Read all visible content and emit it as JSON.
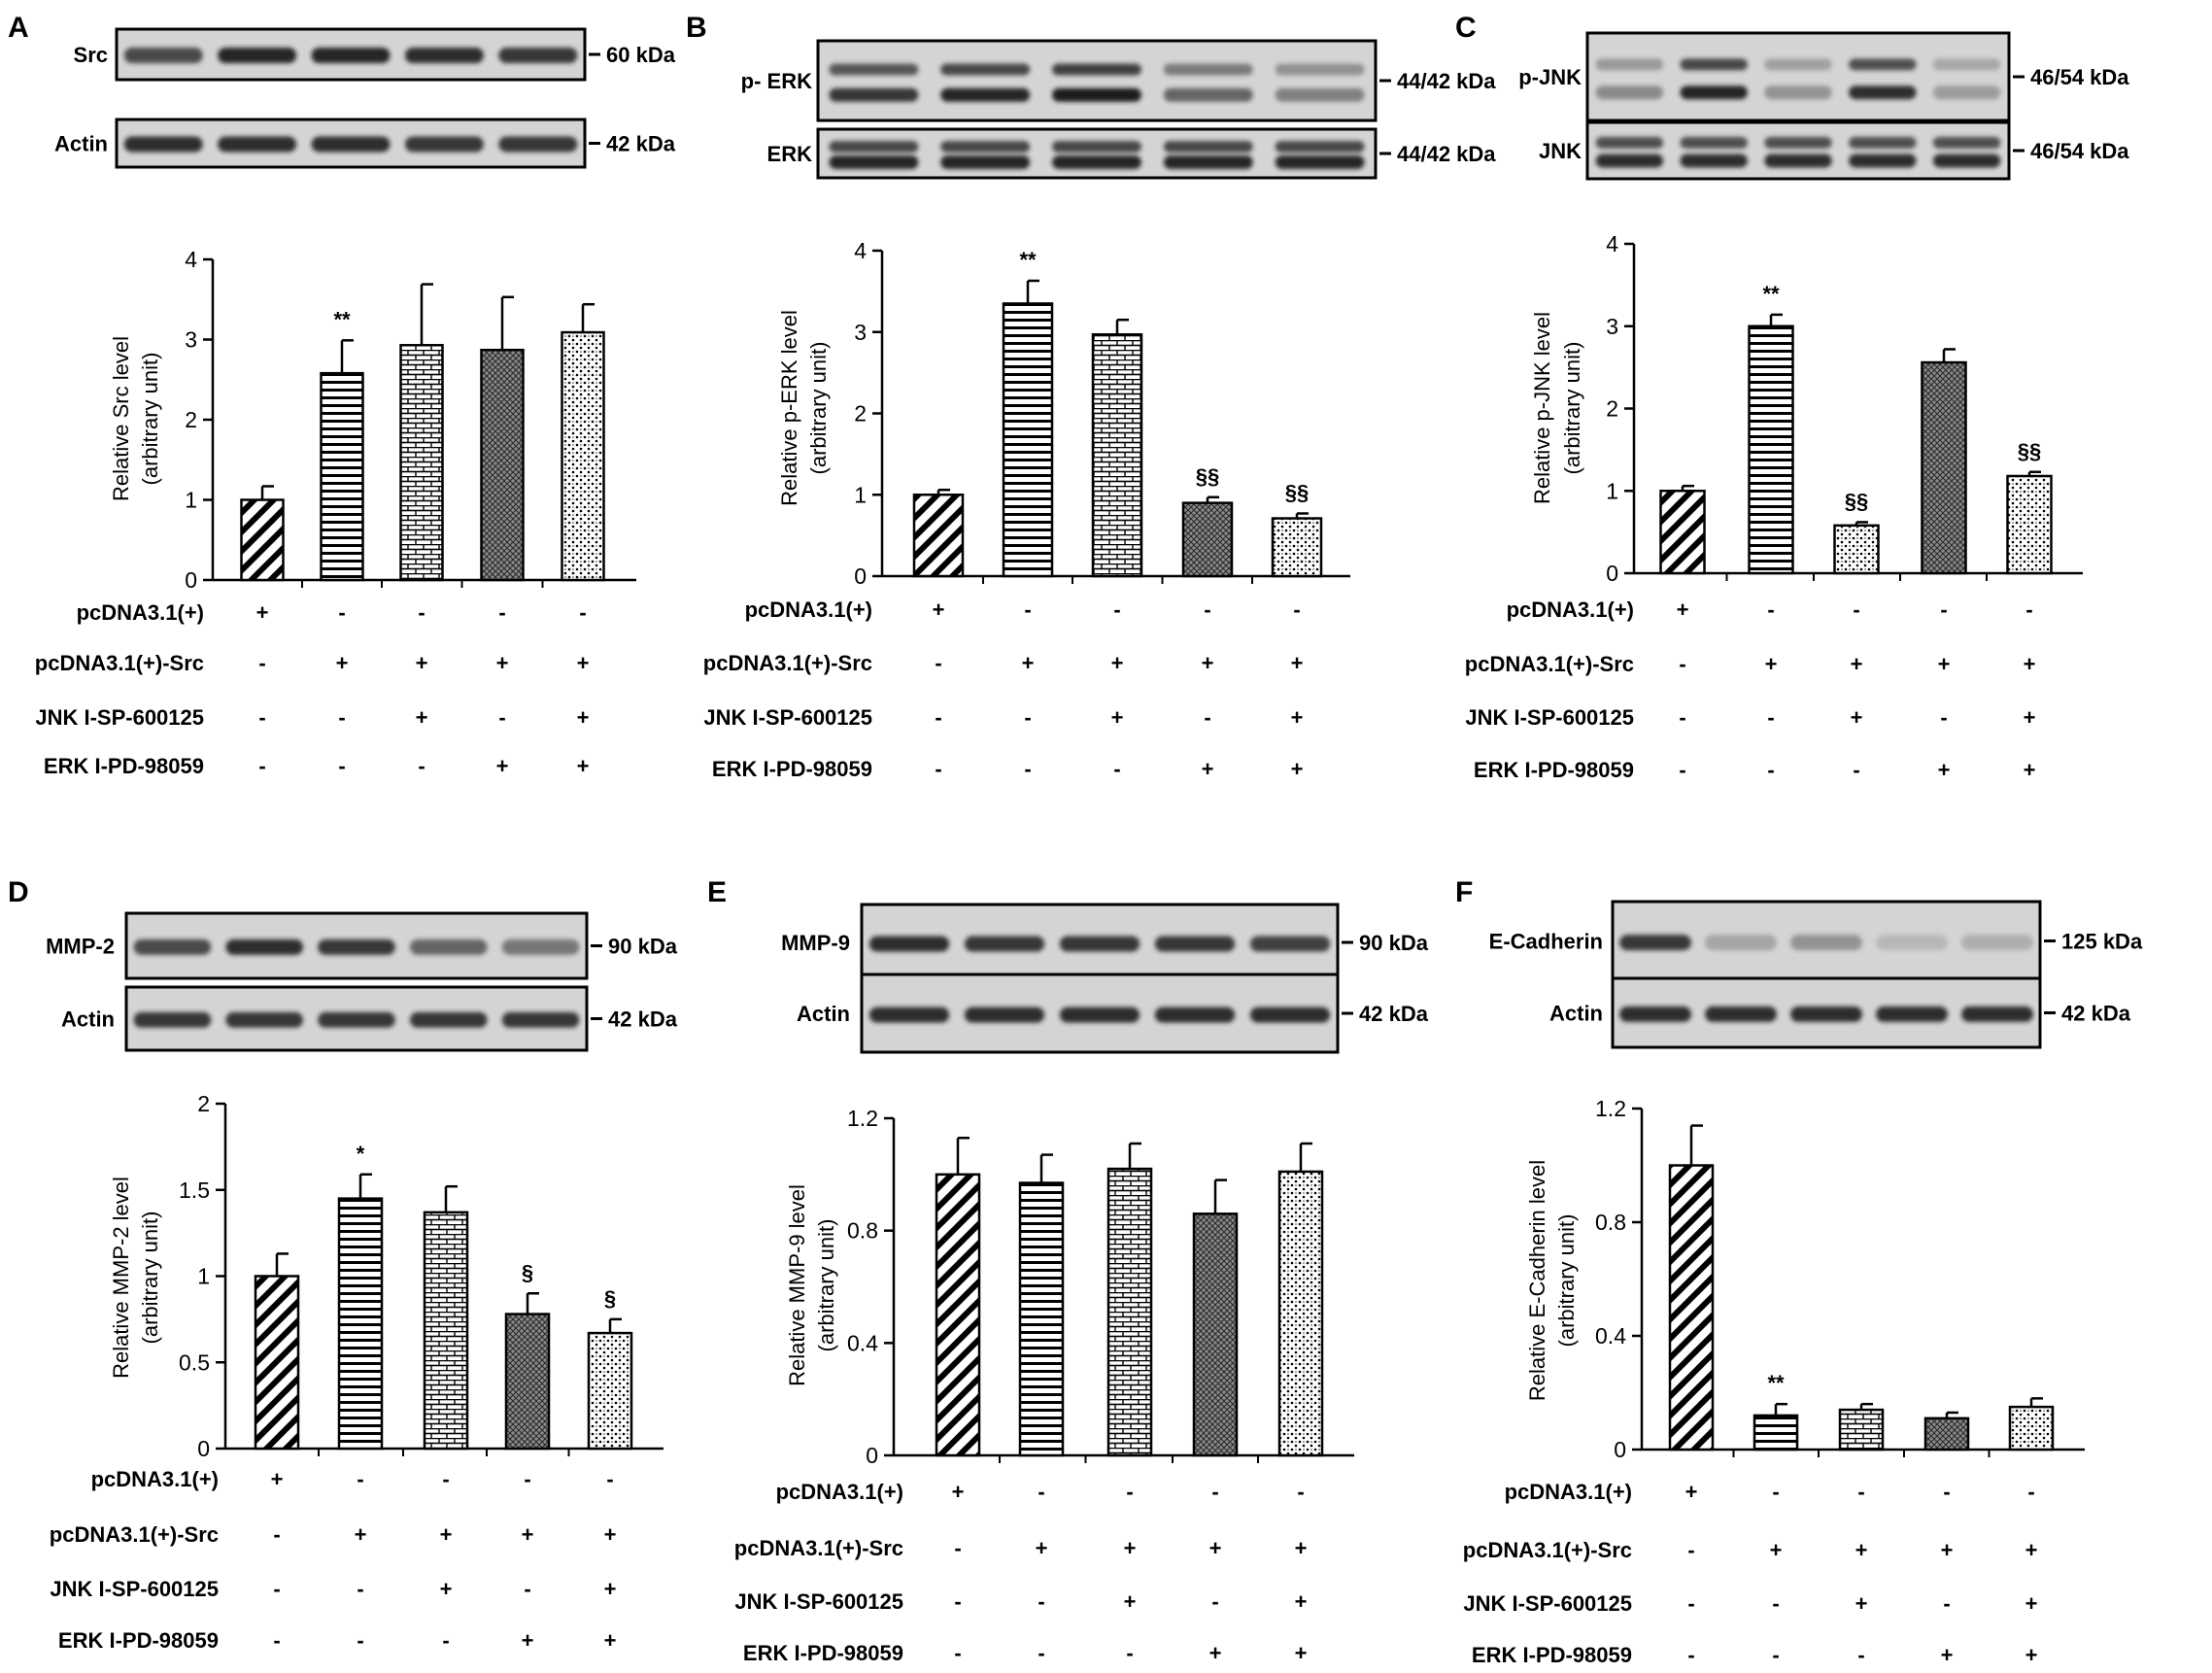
{
  "row_labels": [
    "pcDNA3.1(+)",
    "pcDNA3.1(+)-Src",
    "JNK I-SP-600125",
    "ERK I-PD-98059"
  ],
  "colors": {
    "band": "#1e1e1e",
    "blot_bg": "#d4d4d4",
    "axis": "#000000"
  },
  "panels": [
    {
      "letter": "A",
      "blots": [
        {
          "label": "Src",
          "marker": "60 kDa"
        },
        {
          "label": "Actin",
          "marker": "42 kDa"
        }
      ],
      "chart_data": {
        "type": "bar",
        "ylabel": "Relative Src level",
        "ylabel2": "(arbitrary unit)",
        "ylim": [
          0,
          4
        ],
        "yticks": [
          "0",
          "1",
          "2",
          "3",
          "4"
        ],
        "values": [
          1.0,
          2.58,
          2.93,
          2.87,
          3.09
        ],
        "errors": [
          0.17,
          0.41,
          0.76,
          0.66,
          0.35
        ],
        "annotations": [
          "",
          "**",
          "",
          "",
          ""
        ],
        "patterns": [
          "diag",
          "horiz",
          "brick",
          "cross",
          "dots"
        ],
        "signs": [
          [
            "+",
            "-",
            "-",
            "-",
            "-"
          ],
          [
            "-",
            "+",
            "+",
            "+",
            "+"
          ],
          [
            "-",
            "-",
            "+",
            "-",
            "+"
          ],
          [
            "-",
            "-",
            "-",
            "+",
            "+"
          ]
        ]
      }
    },
    {
      "letter": "B",
      "blots": [
        {
          "label": "p- ERK",
          "marker": "44/42 kDa"
        },
        {
          "label": "ERK",
          "marker": "44/42 kDa"
        }
      ],
      "chart_data": {
        "type": "bar",
        "ylabel": "Relative p-ERK level",
        "ylabel2": "(arbitrary unit)",
        "ylim": [
          0,
          4
        ],
        "yticks": [
          "0",
          "1",
          "2",
          "3",
          "4"
        ],
        "values": [
          1.0,
          3.35,
          2.97,
          0.9,
          0.71
        ],
        "errors": [
          0.06,
          0.28,
          0.18,
          0.07,
          0.06
        ],
        "annotations": [
          "",
          "**",
          "",
          "§§",
          "§§"
        ],
        "patterns": [
          "diag",
          "horiz",
          "brick",
          "cross",
          "dots"
        ],
        "signs": [
          [
            "+",
            "-",
            "-",
            "-",
            "-"
          ],
          [
            "-",
            "+",
            "+",
            "+",
            "+"
          ],
          [
            "-",
            "-",
            "+",
            "-",
            "+"
          ],
          [
            "-",
            "-",
            "-",
            "+",
            "+"
          ]
        ]
      }
    },
    {
      "letter": "C",
      "blots": [
        {
          "label": "p-JNK",
          "marker": "46/54 kDa"
        },
        {
          "label": "JNK",
          "marker": "46/54 kDa"
        }
      ],
      "chart_data": {
        "type": "bar",
        "ylabel": "Relative p-JNK level",
        "ylabel2": "(arbitrary unit)",
        "ylim": [
          0,
          4
        ],
        "yticks": [
          "0",
          "1",
          "2",
          "3",
          "4"
        ],
        "values": [
          1.0,
          3.0,
          0.58,
          2.56,
          1.18
        ],
        "errors": [
          0.06,
          0.14,
          0.04,
          0.16,
          0.05
        ],
        "annotations": [
          "",
          "**",
          "§§",
          "",
          "§§"
        ],
        "patterns": [
          "diag",
          "horiz",
          "dots",
          "cross",
          "dots"
        ],
        "signs": [
          [
            "+",
            "-",
            "-",
            "-",
            "-"
          ],
          [
            "-",
            "+",
            "+",
            "+",
            "+"
          ],
          [
            "-",
            "-",
            "+",
            "-",
            "+"
          ],
          [
            "-",
            "-",
            "-",
            "+",
            "+"
          ]
        ]
      }
    },
    {
      "letter": "D",
      "blots": [
        {
          "label": "MMP-2",
          "marker": "90 kDa"
        },
        {
          "label": "Actin",
          "marker": "42 kDa"
        }
      ],
      "chart_data": {
        "type": "bar",
        "ylabel": "Relative MMP-2 level",
        "ylabel2": "(arbitrary unit)",
        "ylim": [
          0,
          2
        ],
        "yticks": [
          "0",
          "0.5",
          "1",
          "1.5",
          "2"
        ],
        "values": [
          1.0,
          1.45,
          1.37,
          0.78,
          0.67
        ],
        "errors": [
          0.13,
          0.14,
          0.15,
          0.12,
          0.08
        ],
        "annotations": [
          "",
          "*",
          "",
          "§",
          "§"
        ],
        "patterns": [
          "diag",
          "horiz",
          "brick",
          "cross",
          "dots"
        ],
        "signs": [
          [
            "+",
            "-",
            "-",
            "-",
            "-"
          ],
          [
            "-",
            "+",
            "+",
            "+",
            "+"
          ],
          [
            "-",
            "-",
            "+",
            "-",
            "+"
          ],
          [
            "-",
            "-",
            "-",
            "+",
            "+"
          ]
        ]
      }
    },
    {
      "letter": "E",
      "blots": [
        {
          "label": "MMP-9",
          "marker": "90 kDa"
        },
        {
          "label": "Actin",
          "marker": "42 kDa"
        }
      ],
      "chart_data": {
        "type": "bar",
        "ylabel": "Relative MMP-9 level",
        "ylabel2": "(arbitrary unit)",
        "ylim": [
          0,
          1.2
        ],
        "yticks": [
          "0",
          "0.4",
          "0.8",
          "1.2"
        ],
        "values": [
          1.0,
          0.97,
          1.02,
          0.86,
          1.01
        ],
        "errors": [
          0.13,
          0.1,
          0.09,
          0.12,
          0.1
        ],
        "annotations": [
          "",
          "",
          "",
          "",
          ""
        ],
        "patterns": [
          "diag",
          "horiz",
          "brick",
          "cross",
          "dots"
        ],
        "signs": [
          [
            "+",
            "-",
            "-",
            "-",
            "-"
          ],
          [
            "-",
            "+",
            "+",
            "+",
            "+"
          ],
          [
            "-",
            "-",
            "+",
            "-",
            "+"
          ],
          [
            "-",
            "-",
            "-",
            "+",
            "+"
          ]
        ]
      }
    },
    {
      "letter": "F",
      "blots": [
        {
          "label": "E-Cadherin",
          "marker": "125 kDa"
        },
        {
          "label": "Actin",
          "marker": "42 kDa"
        }
      ],
      "chart_data": {
        "type": "bar",
        "ylabel": "Relative E-Cadherin level",
        "ylabel2": "(arbitrary unit)",
        "ylim": [
          0,
          1.2
        ],
        "yticks": [
          "0",
          "0.4",
          "0.8",
          "1.2"
        ],
        "values": [
          1.0,
          0.12,
          0.14,
          0.11,
          0.15
        ],
        "errors": [
          0.14,
          0.04,
          0.02,
          0.02,
          0.03
        ],
        "annotations": [
          "",
          "**",
          "",
          "",
          ""
        ],
        "patterns": [
          "diag",
          "horiz",
          "brick",
          "cross",
          "dots"
        ],
        "signs": [
          [
            "+",
            "-",
            "-",
            "-",
            "-"
          ],
          [
            "-",
            "+",
            "+",
            "+",
            "+"
          ],
          [
            "-",
            "-",
            "+",
            "-",
            "+"
          ],
          [
            "-",
            "-",
            "-",
            "+",
            "+"
          ]
        ]
      }
    }
  ]
}
